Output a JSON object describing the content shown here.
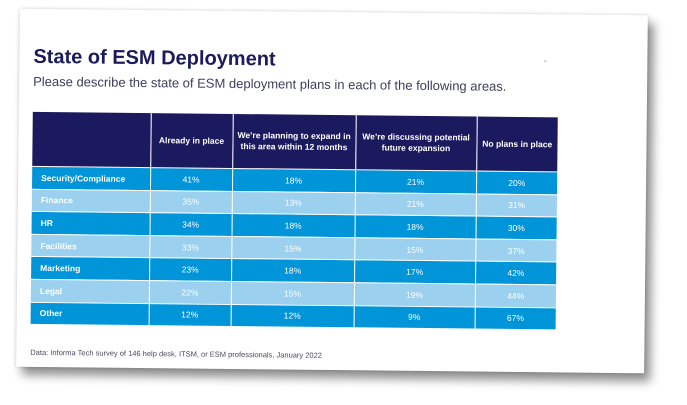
{
  "title": "State of ESM Deployment",
  "subtitle": "Please describe the state of ESM deployment plans in each of the following areas.",
  "table": {
    "headers": [
      "Already in place",
      "We’re planning to expand in this area within 12 months",
      "We’re discussing potential future expansion",
      "No plans in place"
    ],
    "rows": [
      {
        "label": "Security/Compliance",
        "values": [
          "41%",
          "18%",
          "21%",
          "20%"
        ]
      },
      {
        "label": "Finance",
        "values": [
          "35%",
          "13%",
          "21%",
          "31%"
        ]
      },
      {
        "label": "HR",
        "values": [
          "34%",
          "18%",
          "18%",
          "30%"
        ]
      },
      {
        "label": "Facilities",
        "values": [
          "33%",
          "15%",
          "15%",
          "37%"
        ]
      },
      {
        "label": "Marketing",
        "values": [
          "23%",
          "18%",
          "17%",
          "42%"
        ]
      },
      {
        "label": "Legal",
        "values": [
          "22%",
          "15%",
          "19%",
          "44%"
        ]
      },
      {
        "label": "Other",
        "values": [
          "12%",
          "12%",
          "9%",
          "67%"
        ]
      }
    ]
  },
  "source": "Data: Informa Tech survey of 146 help desk, ITSM, or ESM professionals, January 2022",
  "colors": {
    "header_bg": "#1c1a5e",
    "row_dark": "#0094d8",
    "row_light": "#9bd0ef",
    "title": "#1b1a5c"
  }
}
